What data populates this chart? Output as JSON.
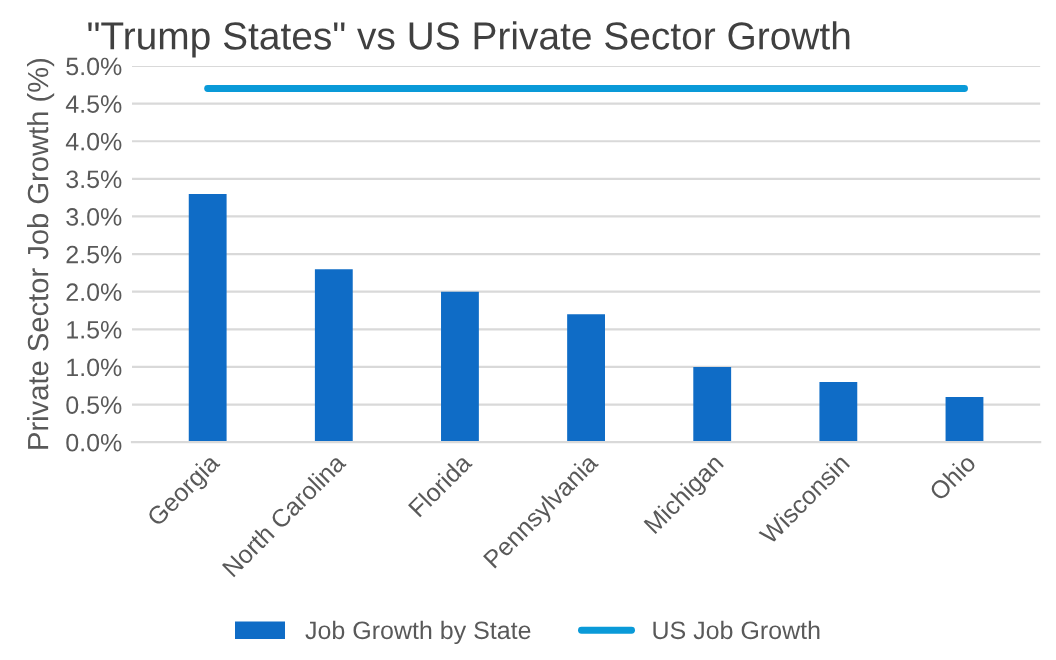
{
  "chart_data": {
    "type": "bar",
    "title": "\"Trump States\" vs US Private Sector Growth",
    "ylabel": "Private Sector Job Growth (%)",
    "categories": [
      "Georgia",
      "North Carolina",
      "Florida",
      "Pennsylvania",
      "Michigan",
      "Wisconsin",
      "Ohio"
    ],
    "series": [
      {
        "name": "Job Growth by State",
        "type": "bar",
        "color": "#0f6cc6",
        "values": [
          3.3,
          2.3,
          2.0,
          1.7,
          1.0,
          0.8,
          0.6
        ]
      },
      {
        "name": "US Job Growth",
        "type": "line",
        "color": "#0a9ad8",
        "values": [
          4.7,
          4.7,
          4.7,
          4.7,
          4.7,
          4.7,
          4.7
        ]
      }
    ],
    "ylim": [
      0,
      5.0
    ],
    "yticks": [
      {
        "value": 0,
        "label": "0.0%"
      },
      {
        "value": 0.5,
        "label": "0.5%"
      },
      {
        "value": 1.0,
        "label": "1.0%"
      },
      {
        "value": 1.5,
        "label": "1.5%"
      },
      {
        "value": 2.0,
        "label": "2.0%"
      },
      {
        "value": 2.5,
        "label": "2.5%"
      },
      {
        "value": 3.0,
        "label": "3.0%"
      },
      {
        "value": 3.5,
        "label": "3.5%"
      },
      {
        "value": 4.0,
        "label": "4.0%"
      },
      {
        "value": 4.5,
        "label": "4.5%"
      },
      {
        "value": 5.0,
        "label": "5.0%"
      }
    ],
    "grid": "y",
    "legend": "bottom"
  }
}
